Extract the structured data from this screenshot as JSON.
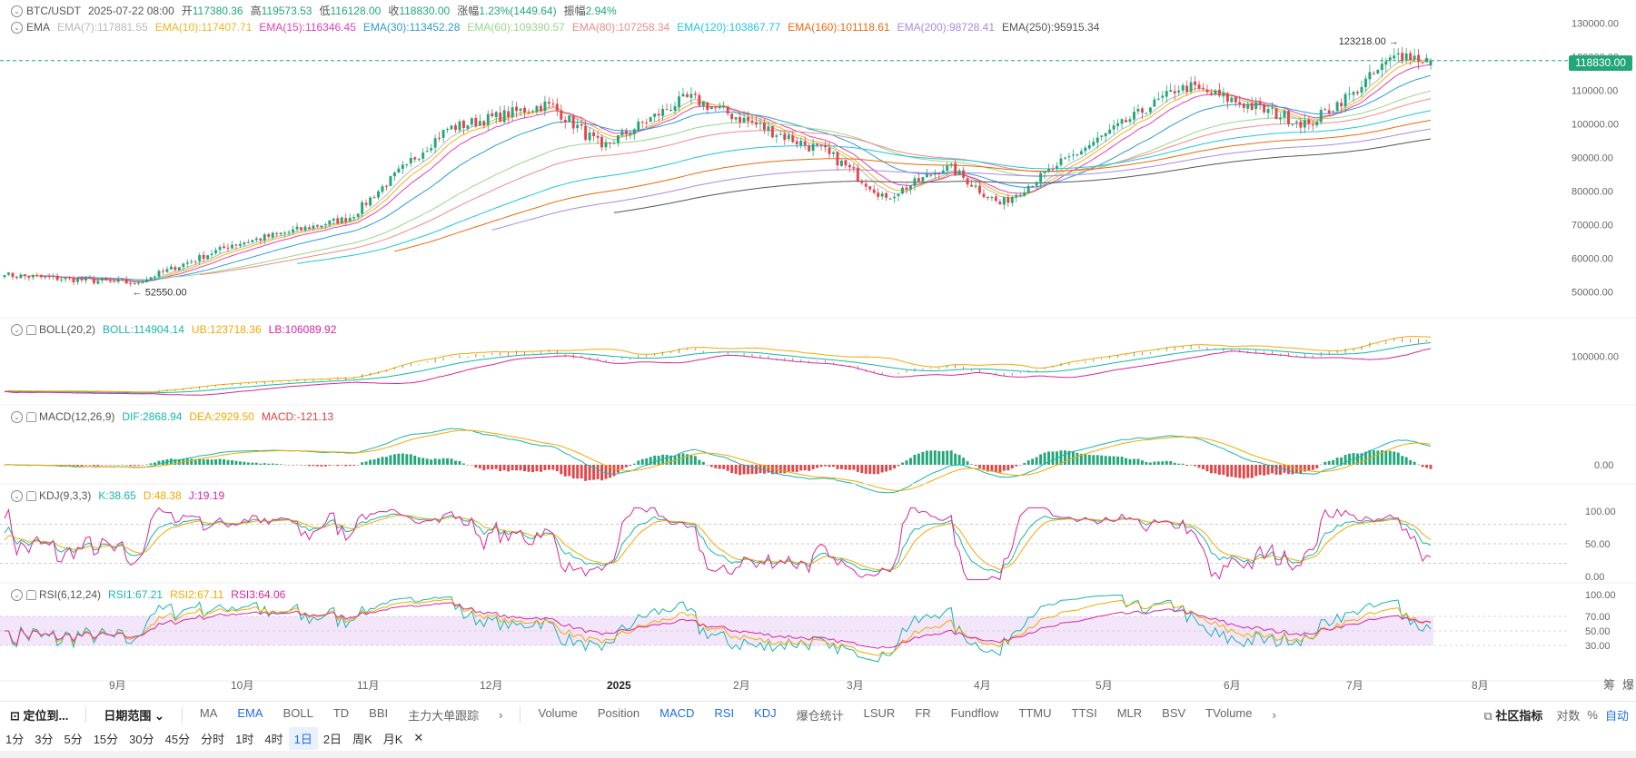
{
  "header": {
    "symbol": "BTC/USDT",
    "datetime": "2025-07-22 08:00",
    "open_label": "开",
    "open": "117380.36",
    "high_label": "高",
    "high": "119573.53",
    "low_label": "低",
    "low": "116128.00",
    "close_label": "收",
    "close": "118830.00",
    "change_label": "涨幅",
    "change": "1.23%(1449.64)",
    "amp_label": "振幅",
    "amp": "2.94%"
  },
  "indicators": {
    "ema": {
      "label": "EMA",
      "items": [
        {
          "text": "EMA(7):117881.55",
          "color": "#b8b8b8"
        },
        {
          "text": "EMA(10):117407.71",
          "color": "#f2b418"
        },
        {
          "text": "EMA(15):116346.45",
          "color": "#e23fb8"
        },
        {
          "text": "EMA(30):113452.28",
          "color": "#2e9ad6"
        },
        {
          "text": "EMA(60):109390.57",
          "color": "#9bd48a"
        },
        {
          "text": "EMA(80):107258.34",
          "color": "#f08a8a"
        },
        {
          "text": "EMA(120):103867.77",
          "color": "#1fc5e0"
        },
        {
          "text": "EMA(160):101118.61",
          "color": "#e86a10"
        },
        {
          "text": "EMA(200):98728.41",
          "color": "#a98ae0"
        },
        {
          "text": "EMA(250):95915.34",
          "color": "#555555"
        }
      ]
    },
    "boll": {
      "label": "BOLL(20,2)",
      "items": [
        {
          "text": "BOLL:114904.14",
          "color": "#19b6a8"
        },
        {
          "text": "UB:123718.36",
          "color": "#f2a900"
        },
        {
          "text": "LB:106089.92",
          "color": "#d8259c"
        }
      ]
    },
    "macd": {
      "label": "MACD(12,26,9)",
      "items": [
        {
          "text": "DIF:2868.94",
          "color": "#19b6a8"
        },
        {
          "text": "DEA:2929.50",
          "color": "#f2a900"
        },
        {
          "text": "MACD:-121.13",
          "color": "#e04040"
        }
      ]
    },
    "kdj": {
      "label": "KDJ(9,3,3)",
      "items": [
        {
          "text": "K:38.65",
          "color": "#19b6a8"
        },
        {
          "text": "D:48.38",
          "color": "#f2a900"
        },
        {
          "text": "J:19.19",
          "color": "#d8259c"
        }
      ]
    },
    "rsi": {
      "label": "RSI(6,12,24)",
      "items": [
        {
          "text": "RSI1:67.21",
          "color": "#19b6a8"
        },
        {
          "text": "RSI2:67.11",
          "color": "#f2a900"
        },
        {
          "text": "RSI3:64.06",
          "color": "#d8259c"
        }
      ]
    }
  },
  "price_axis": {
    "labels": [
      "130000.00",
      "120000.00",
      "110000.00",
      "100000.00",
      "90000.00",
      "80000.00",
      "70000.00",
      "60000.00",
      "50000.00"
    ],
    "current": "118830.00"
  },
  "boll_axis": {
    "labels": [
      "100000.00"
    ]
  },
  "macd_axis": {
    "labels": [
      "0.00"
    ]
  },
  "kdj_axis": {
    "labels": [
      "100.00",
      "50.00",
      "0.00"
    ]
  },
  "rsi_axis": {
    "labels": [
      "100.00",
      "70.00",
      "50.00",
      "30.00"
    ]
  },
  "annotations": {
    "high": "123218.00",
    "low": "52550.00"
  },
  "time_axis": {
    "labels": [
      "9月",
      "10月",
      "11月",
      "12月",
      "2025",
      "2月",
      "3月",
      "4月",
      "5月",
      "6月",
      "7月",
      "8月"
    ]
  },
  "corner_tools": [
    "筹",
    "爆"
  ],
  "toolbar": {
    "locate": "定位到...",
    "date_range": "日期范围",
    "main_indicators": [
      "MA",
      "EMA",
      "BOLL",
      "TD",
      "BBI",
      "主力大单跟踪"
    ],
    "sub_indicators": [
      "Volume",
      "Position",
      "MACD",
      "RSI",
      "KDJ",
      "爆仓统计",
      "LSUR",
      "FR",
      "Fundflow",
      "TTMU",
      "TTSI",
      "MLR",
      "BSV",
      "TVolume"
    ],
    "community": "社区指标",
    "log": "对数",
    "percent": "%",
    "auto": "自动"
  },
  "timeframes": [
    "1分",
    "3分",
    "5分",
    "15分",
    "30分",
    "45分",
    "分时",
    "1时",
    "4时",
    "1日",
    "2日",
    "周K",
    "月K"
  ],
  "timeframe_selected": "1日",
  "colors": {
    "up": "#22a67a",
    "down": "#e0464a",
    "accent": "#1f6fe5"
  },
  "chart_data": {
    "type": "candlestick",
    "interval": "1d",
    "x_range": [
      "2024-08-05",
      "2025-07-22"
    ],
    "y_range": [
      45000,
      132000
    ],
    "price_anchors": [
      {
        "date": "2024-08-05",
        "close": 55000
      },
      {
        "date": "2024-09-06",
        "close": 52550
      },
      {
        "date": "2024-09-30",
        "close": 64000
      },
      {
        "date": "2024-10-29",
        "close": 72000
      },
      {
        "date": "2024-11-12",
        "close": 88000
      },
      {
        "date": "2024-11-22",
        "close": 98500
      },
      {
        "date": "2024-12-17",
        "close": 106000
      },
      {
        "date": "2024-12-30",
        "close": 93000
      },
      {
        "date": "2025-01-20",
        "close": 108000
      },
      {
        "date": "2025-02-24",
        "close": 91000
      },
      {
        "date": "2025-03-10",
        "close": 78000
      },
      {
        "date": "2025-03-25",
        "close": 87500
      },
      {
        "date": "2025-04-07",
        "close": 76000
      },
      {
        "date": "2025-04-21",
        "close": 87500
      },
      {
        "date": "2025-05-22",
        "close": 111500
      },
      {
        "date": "2025-06-22",
        "close": 100000
      },
      {
        "date": "2025-07-03",
        "close": 109500
      },
      {
        "date": "2025-07-14",
        "close": 121000
      },
      {
        "date": "2025-07-22",
        "close": 118830
      }
    ],
    "last": {
      "open": 117380.36,
      "high": 119573.53,
      "low": 116128.0,
      "close": 118830.0
    },
    "ema_last": {
      "7": 117881.55,
      "10": 117407.71,
      "15": 116346.45,
      "30": 113452.28,
      "60": 109390.57,
      "80": 107258.34,
      "120": 103867.77,
      "160": 101118.61,
      "200": 98728.41,
      "250": 95915.34
    },
    "boll_last": {
      "mid": 114904.14,
      "ub": 123718.36,
      "lb": 106089.92
    },
    "macd_last": {
      "dif": 2868.94,
      "dea": 2929.5,
      "hist": -121.13
    },
    "kdj_last": {
      "k": 38.65,
      "d": 48.38,
      "j": 19.19
    },
    "rsi_last": {
      "rsi6": 67.21,
      "rsi12": 67.11,
      "rsi24": 64.06
    }
  }
}
